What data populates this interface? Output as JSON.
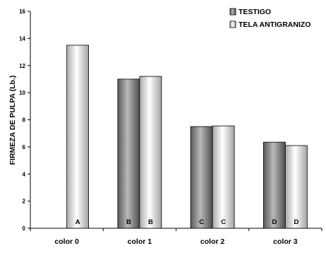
{
  "chart_data": {
    "type": "bar",
    "title": "",
    "xlabel": "",
    "ylabel": "FIRMEZA DE PULPA (Lb.)",
    "ylim": [
      0,
      16
    ],
    "yticks": [
      "0",
      "2",
      "4",
      "6",
      "8",
      "10",
      "12",
      "14",
      "16"
    ],
    "categories": [
      "color 0",
      "color 1",
      "color 2",
      "color 3"
    ],
    "series": [
      {
        "name": "TESTIGO",
        "values": [
          null,
          11.0,
          7.5,
          6.35
        ],
        "labels": [
          "",
          "B",
          "C",
          "D"
        ],
        "color": "#8c8c8c"
      },
      {
        "name": "TELA ANTIGRANIZO",
        "values": [
          13.5,
          11.2,
          7.55,
          6.1
        ],
        "labels": [
          "A",
          "B",
          "C",
          "D"
        ],
        "color": "#e2e2e2"
      }
    ],
    "legend_position": "top-right",
    "grid": false
  }
}
